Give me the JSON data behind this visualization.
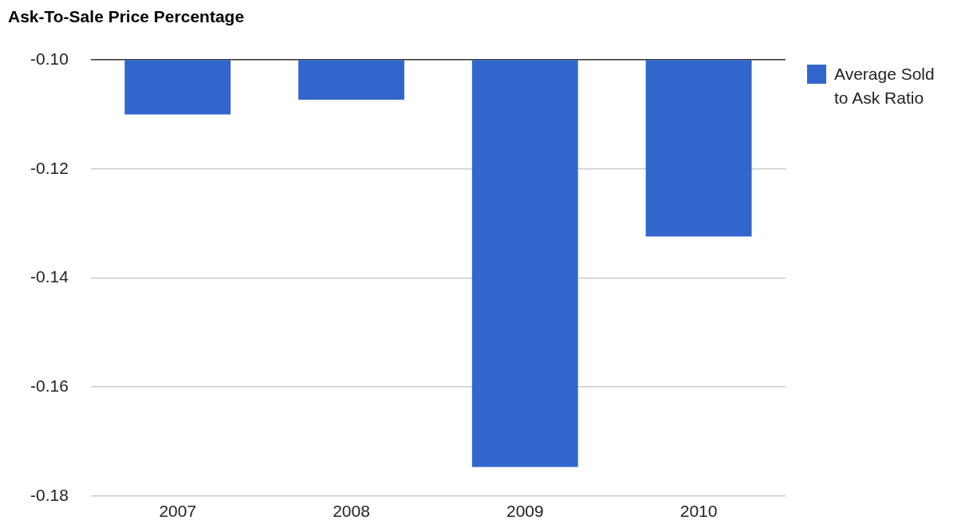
{
  "chart_data": {
    "type": "bar",
    "title": "Ask-To-Sale Price Percentage",
    "categories": [
      "2007",
      "2008",
      "2009",
      "2010"
    ],
    "series": [
      {
        "name": "Average Sold to Ask Ratio",
        "color": "#3366cc",
        "values": [
          -0.11,
          -0.1073,
          -0.1747,
          -0.1324
        ]
      }
    ],
    "ylim": [
      -0.18,
      -0.1
    ],
    "yticks": [
      {
        "value": -0.18,
        "label": "-0.18"
      },
      {
        "value": -0.16,
        "label": "-0.16"
      },
      {
        "value": -0.14,
        "label": "-0.14"
      },
      {
        "value": -0.12,
        "label": "-0.12"
      },
      {
        "value": -0.1,
        "label": "-0.10"
      }
    ],
    "grid": "y",
    "legend": "top right"
  }
}
